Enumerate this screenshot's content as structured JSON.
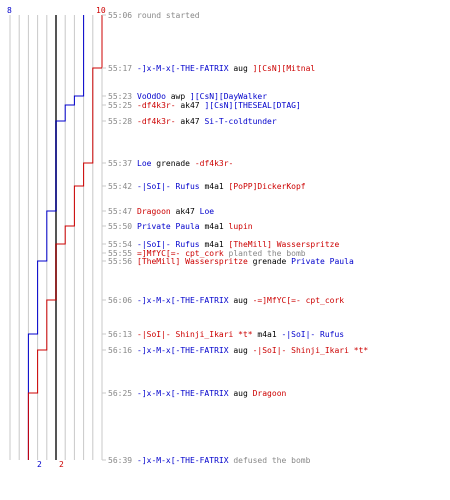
{
  "colors": {
    "team1": "#0000cc",
    "team2": "#cc0000",
    "neutral": "#000000",
    "timestamp": "#888888",
    "grid": "#c8c8c8",
    "center": "#555555"
  },
  "counts": {
    "team1_start": "8",
    "team2_start": "10",
    "team1_end": "2",
    "team2_end": "2"
  },
  "events": [
    {
      "time": "55:06",
      "parts": [
        {
          "t": "round started",
          "c": "timestamp"
        }
      ]
    },
    {
      "time": "55:17",
      "parts": [
        {
          "t": "-]x-M-x[-THE-FATRIX",
          "c": "team1"
        },
        {
          "t": " aug ",
          "c": "neutral"
        },
        {
          "t": "][CsN][Mitnal",
          "c": "team2"
        }
      ]
    },
    {
      "time": "55:23",
      "parts": [
        {
          "t": "VoOdOo",
          "c": "team1"
        },
        {
          "t": " awp ",
          "c": "neutral"
        },
        {
          "t": "][CsN][DayWalker",
          "c": "team1"
        }
      ]
    },
    {
      "time": "55:25",
      "parts": [
        {
          "t": "-df4k3r-",
          "c": "team2"
        },
        {
          "t": " ak47 ",
          "c": "neutral"
        },
        {
          "t": "][CsN][THESEAL[DTAG]",
          "c": "team1"
        }
      ]
    },
    {
      "time": "55:28",
      "parts": [
        {
          "t": "-df4k3r-",
          "c": "team2"
        },
        {
          "t": " ak47 ",
          "c": "neutral"
        },
        {
          "t": "Si-T-coldtunder",
          "c": "team1"
        }
      ]
    },
    {
      "time": "55:37",
      "parts": [
        {
          "t": "Loe",
          "c": "team1"
        },
        {
          "t": " grenade ",
          "c": "neutral"
        },
        {
          "t": "-df4k3r-",
          "c": "team2"
        }
      ]
    },
    {
      "time": "55:42",
      "parts": [
        {
          "t": "-|SoI|- Rufus",
          "c": "team1"
        },
        {
          "t": " m4a1 ",
          "c": "neutral"
        },
        {
          "t": "[PoPP]DickerKopf",
          "c": "team2"
        }
      ]
    },
    {
      "time": "55:47",
      "parts": [
        {
          "t": "Dragoon",
          "c": "team2"
        },
        {
          "t": " ak47 ",
          "c": "neutral"
        },
        {
          "t": "Loe",
          "c": "team1"
        }
      ]
    },
    {
      "time": "55:50",
      "parts": [
        {
          "t": "Private Paula",
          "c": "team1"
        },
        {
          "t": " m4a1 ",
          "c": "neutral"
        },
        {
          "t": "lupin",
          "c": "team2"
        }
      ]
    },
    {
      "time": "55:54",
      "parts": [
        {
          "t": "-|SoI|- Rufus",
          "c": "team1"
        },
        {
          "t": " m4a1 ",
          "c": "neutral"
        },
        {
          "t": "[TheMill] Wasserspritze",
          "c": "team2"
        }
      ]
    },
    {
      "time": "55:55",
      "parts": [
        {
          "t": "=]MfYC[=- cpt_cork",
          "c": "team2"
        },
        {
          "t": " planted the bomb",
          "c": "timestamp"
        }
      ]
    },
    {
      "time": "55:56",
      "parts": [
        {
          "t": "[TheMill] Wasserspritze",
          "c": "team2"
        },
        {
          "t": " grenade ",
          "c": "neutral"
        },
        {
          "t": "Private Paula",
          "c": "team1"
        }
      ]
    },
    {
      "time": "56:06",
      "parts": [
        {
          "t": "-]x-M-x[-THE-FATRIX",
          "c": "team1"
        },
        {
          "t": " aug ",
          "c": "neutral"
        },
        {
          "t": "-=]MfYC[=- cpt_cork",
          "c": "team2"
        }
      ]
    },
    {
      "time": "56:13",
      "parts": [
        {
          "t": "-|SoI|- Shinji_Ikari *t*",
          "c": "team2"
        },
        {
          "t": " m4a1 ",
          "c": "neutral"
        },
        {
          "t": "-|SoI|- Rufus",
          "c": "team1"
        }
      ]
    },
    {
      "time": "56:16",
      "parts": [
        {
          "t": "-]x-M-x[-THE-FATRIX",
          "c": "team1"
        },
        {
          "t": " aug ",
          "c": "neutral"
        },
        {
          "t": "-|SoI|- Shinji_Ikari *t*",
          "c": "team2"
        }
      ]
    },
    {
      "time": "56:25",
      "parts": [
        {
          "t": "-]x-M-x[-THE-FATRIX",
          "c": "team1"
        },
        {
          "t": " aug ",
          "c": "neutral"
        },
        {
          "t": "Dragoon",
          "c": "team2"
        }
      ]
    },
    {
      "time": "56:39",
      "parts": [
        {
          "t": "-]x-M-x[-THE-FATRIX",
          "c": "team1"
        },
        {
          "t": " defused the bomb",
          "c": "timestamp"
        }
      ]
    }
  ],
  "team1_counts": [
    8,
    8,
    7,
    6,
    5,
    5,
    5,
    4,
    4,
    4,
    4,
    3,
    3,
    2,
    2,
    2,
    2
  ],
  "team2_counts": [
    10,
    9,
    9,
    9,
    9,
    8,
    7,
    7,
    6,
    5,
    5,
    5,
    4,
    4,
    3,
    2,
    2
  ]
}
